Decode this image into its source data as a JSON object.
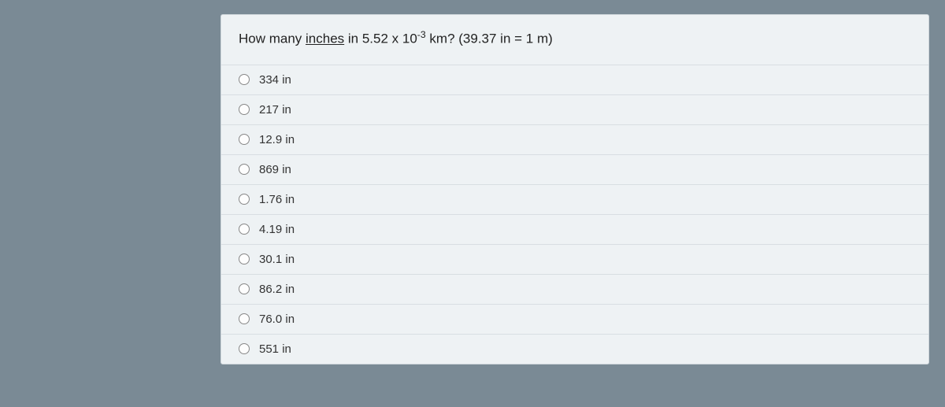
{
  "question": {
    "prefix": "How many ",
    "underlined": "inches",
    "mid": " in 5.52 x 10",
    "exp": "-3",
    "suffix": " km?  (39.37 in = 1 m)"
  },
  "options": [
    {
      "label": "334 in"
    },
    {
      "label": "217 in"
    },
    {
      "label": "12.9 in"
    },
    {
      "label": "869 in"
    },
    {
      "label": "1.76 in"
    },
    {
      "label": "4.19 in"
    },
    {
      "label": "30.1 in"
    },
    {
      "label": "86.2 in"
    },
    {
      "label": "76.0 in"
    },
    {
      "label": "551 in"
    }
  ],
  "colors": {
    "page_bg": "#7a8a95",
    "panel_bg": "#eef2f4",
    "panel_border": "#cfd6db",
    "row_border": "#d8dee2",
    "text": "#222",
    "radio_border": "#888"
  }
}
